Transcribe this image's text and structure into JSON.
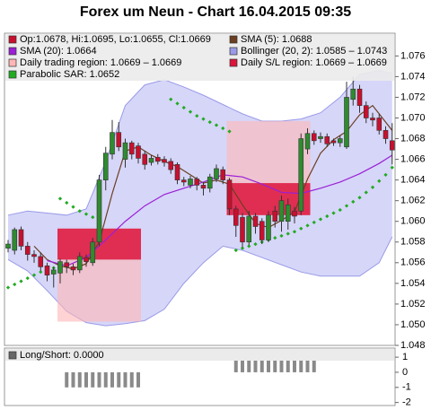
{
  "chart_data": {
    "type": "candlestick",
    "title": "Forex um Neun - Chart 16.04.2015 09:35",
    "ylim": [
      1.048,
      1.0782
    ],
    "yticks": [
      1.048,
      {
        "value": 1.05,
        "label": "1.050"
      },
      1.052,
      1.054,
      1.056,
      1.058,
      {
        "value": 1.06,
        "label": "1.060"
      },
      1.062,
      1.064,
      1.066,
      1.068,
      {
        "value": 1.07,
        "label": "1.070"
      },
      1.072,
      1.074,
      1.076
    ],
    "candles": {
      "name": "Op:1.0678, Hi:1.0695, Lo:1.0655, Cl:1.0669",
      "color_up": "#2e8b2e",
      "color_down": "#c8102e",
      "open": [
        1.0574,
        1.0572,
        1.0592,
        1.0576,
        1.0568,
        1.0566,
        1.0557,
        1.0549,
        1.055,
        1.056,
        1.0556,
        1.0553,
        1.0565,
        1.056,
        1.058,
        1.064,
        1.0665,
        1.0686,
        1.066,
        1.0676,
        1.0673,
        1.0665,
        1.0657,
        1.0662,
        1.066,
        1.0658,
        1.0655,
        1.064,
        1.0635,
        1.0641,
        1.0635,
        1.0632,
        1.0641,
        1.065,
        1.064,
        1.0612,
        1.0604,
        1.058,
        1.0605,
        1.06,
        1.0582,
        1.061,
        1.06,
        1.06,
        1.061,
        1.061,
        1.067,
        1.0685,
        1.068,
        1.0682,
        1.0678,
        1.0676,
        1.0672,
        1.0718,
        1.0728,
        1.0712,
        1.07,
        1.07,
        1.0688,
        1.0678
      ],
      "high": [
        1.0582,
        1.0594,
        1.0595,
        1.058,
        1.0572,
        1.057,
        1.056,
        1.0556,
        1.0564,
        1.0563,
        1.0559,
        1.057,
        1.0568,
        1.0584,
        1.0645,
        1.0672,
        1.0698,
        1.0696,
        1.068,
        1.0678,
        1.0676,
        1.0668,
        1.0664,
        1.0665,
        1.0663,
        1.0661,
        1.0657,
        1.0643,
        1.0644,
        1.0643,
        1.0638,
        1.0646,
        1.0655,
        1.0653,
        1.0642,
        1.0615,
        1.0608,
        1.061,
        1.0608,
        1.0603,
        1.061,
        1.0615,
        1.0625,
        1.0622,
        1.0614,
        1.0685,
        1.069,
        1.0688,
        1.0686,
        1.0685,
        1.068,
        1.0683,
        1.0735,
        1.074,
        1.0732,
        1.0716,
        1.0705,
        1.0704,
        1.0692,
        1.0695
      ],
      "low": [
        1.057,
        1.0568,
        1.0572,
        1.0562,
        1.056,
        1.0552,
        1.0542,
        1.0536,
        1.054,
        1.055,
        1.0548,
        1.055,
        1.0556,
        1.0557,
        1.0576,
        1.063,
        1.066,
        1.0668,
        1.0652,
        1.066,
        1.0656,
        1.065,
        1.0654,
        1.0655,
        1.0653,
        1.0646,
        1.0636,
        1.0634,
        1.0632,
        1.063,
        1.0625,
        1.0628,
        1.0638,
        1.0636,
        1.0606,
        1.0585,
        1.0575,
        1.0577,
        1.0588,
        1.0578,
        1.058,
        1.0594,
        1.059,
        1.0592,
        1.0598,
        1.0606,
        1.0665,
        1.0674,
        1.0676,
        1.0672,
        1.0673,
        1.0672,
        1.067,
        1.0712,
        1.0705,
        1.0695,
        1.0692,
        1.0684,
        1.0675,
        1.0655
      ],
      "close": [
        1.0578,
        1.0592,
        1.0576,
        1.0568,
        1.0566,
        1.0556,
        1.0548,
        1.0553,
        1.0561,
        1.0556,
        1.0553,
        1.0566,
        1.0561,
        1.058,
        1.064,
        1.0666,
        1.0686,
        1.0672,
        1.0676,
        1.0665,
        1.0661,
        1.0655,
        1.0661,
        1.0658,
        1.0657,
        1.065,
        1.064,
        1.0638,
        1.0641,
        1.0635,
        1.0632,
        1.0643,
        1.0651,
        1.064,
        1.0612,
        1.0596,
        1.058,
        1.0605,
        1.0595,
        1.0582,
        1.0606,
        1.06,
        1.062,
        1.0616,
        1.0605,
        1.068,
        1.0685,
        1.0678,
        1.0682,
        1.0675,
        1.0676,
        1.068,
        1.072,
        1.0728,
        1.0712,
        1.07,
        1.0698,
        1.0688,
        1.068,
        1.0669
      ]
    },
    "series": [
      {
        "name": "SMA (5): 1.0688",
        "color": "#6b3f1f",
        "x": [
          4,
          6,
          8,
          10,
          12,
          14,
          16,
          18,
          20,
          22,
          24,
          26,
          28,
          30,
          32,
          34,
          36,
          38,
          40,
          42,
          44,
          46,
          48,
          50,
          52,
          54,
          56,
          58,
          59
        ],
        "values": [
          1.0576,
          1.0563,
          1.0557,
          1.0554,
          1.0559,
          1.058,
          1.0627,
          1.0668,
          1.0672,
          1.0664,
          1.0658,
          1.0653,
          1.0645,
          1.0637,
          1.064,
          1.0636,
          1.0616,
          1.0598,
          1.0594,
          1.0601,
          1.0609,
          1.0641,
          1.0666,
          1.0679,
          1.0687,
          1.0703,
          1.0712,
          1.0696,
          1.0688
        ]
      },
      {
        "name": "SMA (20): 1.0664",
        "color": "#9b1fd6",
        "x": [
          6,
          9,
          12,
          15,
          18,
          21,
          24,
          27,
          30,
          33,
          36,
          39,
          42,
          45,
          48,
          51,
          54,
          57,
          59
        ],
        "values": [
          1.0562,
          1.0557,
          1.0565,
          1.0582,
          1.06,
          1.0615,
          1.0626,
          1.0632,
          1.0638,
          1.0645,
          1.0643,
          1.0636,
          1.0628,
          1.0627,
          1.0632,
          1.0638,
          1.0646,
          1.0656,
          1.0664
        ]
      },
      {
        "name": "Bollinger (20, 2): 1.0585 – 1.0743",
        "color": "#9a9ae8",
        "x": [
          0,
          3,
          6,
          9,
          12,
          15,
          18,
          21,
          24,
          27,
          30,
          33,
          36,
          39,
          42,
          45,
          48,
          51,
          54,
          57,
          59
        ],
        "upper": [
          1.0606,
          1.061,
          1.0608,
          1.0606,
          1.0612,
          1.0658,
          1.0712,
          1.0732,
          1.0737,
          1.073,
          1.0722,
          1.0713,
          1.0704,
          1.0697,
          1.0697,
          1.0699,
          1.0705,
          1.072,
          1.0742,
          1.0746,
          1.0743
        ],
        "lower": [
          1.0563,
          1.0552,
          1.0533,
          1.0513,
          1.0502,
          1.0499,
          1.0501,
          1.0504,
          1.0515,
          1.054,
          1.056,
          1.0576,
          1.0572,
          1.0565,
          1.0558,
          1.0551,
          1.0547,
          1.0547,
          1.0547,
          1.056,
          1.0585
        ]
      },
      {
        "name": "Parabolic SAR: 1.0652",
        "color": "#22aa22",
        "values": [
          1.0536,
          1.0539,
          1.0542,
          1.0545,
          1.0548,
          1.0551,
          1.0553,
          1.0555,
          1.0622,
          1.0618,
          1.0614,
          1.061,
          1.0607,
          1.0604,
          1.0602,
          null,
          null,
          null,
          null,
          null,
          null,
          null,
          null,
          null,
          null,
          1.0718,
          1.0714,
          1.071,
          1.0706,
          1.0702,
          1.0699,
          1.0696,
          1.0693,
          1.069,
          1.0687,
          1.0572,
          1.0574,
          1.0576,
          1.0578,
          1.058,
          1.0582,
          1.0584,
          1.0586,
          1.0588,
          1.059,
          1.0593,
          1.0596,
          1.0599,
          1.0602,
          1.0605,
          1.0608,
          1.0611,
          1.0615,
          1.0619,
          1.0623,
          1.0628,
          1.0633,
          1.0639,
          1.0645,
          1.0652
        ]
      }
    ],
    "regions": [
      {
        "name": "Daily trading region: 1.0669 – 1.0669",
        "color": "#ffb6b6",
        "boxes": [
          {
            "start": 8,
            "end": 20,
            "low": 1.0503,
            "high": 1.0593
          },
          {
            "start": 34,
            "end": 46,
            "low": 1.0606,
            "high": 1.0697
          }
        ]
      },
      {
        "name": "Daily S/L region: 1.0669 – 1.0669",
        "color": "#dc143c",
        "boxes": [
          {
            "start": 8,
            "end": 20,
            "low": 1.0563,
            "high": 1.0593
          },
          {
            "start": 34,
            "end": 46,
            "low": 1.0606,
            "high": 1.0637
          }
        ]
      }
    ],
    "lower_panel": {
      "type": "bar",
      "title": "Long/Short: 0.0000",
      "color": "#8a8a8a",
      "ylim": [
        -2.2,
        1.6
      ],
      "yticks": [
        1,
        0,
        -1,
        -2
      ],
      "values": [
        0,
        0,
        0,
        0,
        0,
        0,
        0,
        0,
        0,
        -1,
        -1,
        -1,
        -1,
        -1,
        -1,
        -1,
        -1,
        -1,
        -1,
        -1,
        -1,
        0,
        0,
        0,
        0,
        0,
        0,
        0,
        0,
        0,
        0,
        0,
        0,
        0,
        0,
        1,
        1,
        1,
        1,
        1,
        1,
        1,
        1,
        1,
        1,
        1,
        1,
        1,
        0,
        0,
        0,
        0,
        0,
        0,
        0,
        0,
        0,
        0,
        0,
        0
      ]
    }
  }
}
